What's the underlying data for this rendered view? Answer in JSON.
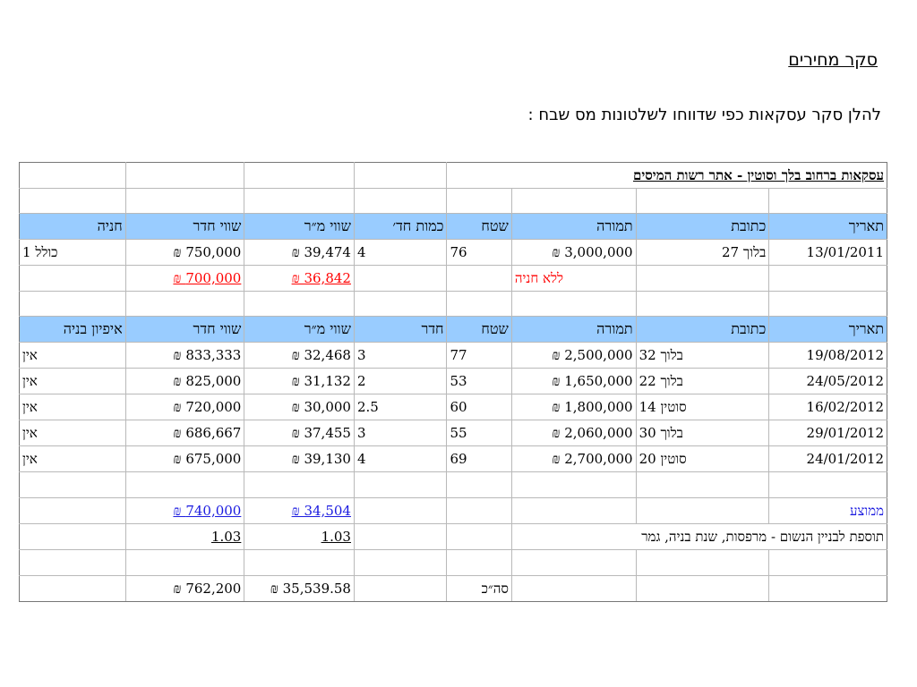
{
  "page": {
    "title": "סקר מחירים",
    "intro": "להלן סקר עסקאות כפי שדווחו לשלטונות מס שבח :"
  },
  "table": {
    "title": "עסקאות ברחוב בלך וסוטין - אתר רשות המיסים",
    "header1": [
      "תאריך",
      "כתובת",
      "תמורה",
      "שטח",
      "כמות חד׳",
      "שווי מ״ר",
      "שווי חדר",
      "חניה"
    ],
    "row1": [
      "13/01/2011",
      "בלוך 27",
      "3,000,000 ₪",
      "76",
      "4",
      "39,474 ₪",
      "750,000 ₪",
      "כולל 1"
    ],
    "row1_note": {
      "label": "ללא חניה",
      "sqm": "36,842 ₪",
      "room": "700,000 ₪"
    },
    "header2": [
      "תאריך",
      "כתובת",
      "תמורה",
      "שטח",
      "חדר",
      "שווי מ״ר",
      "שווי חדר",
      "איפיון בניה"
    ],
    "rows": [
      [
        "19/08/2012",
        "בלוך 32",
        "2,500,000 ₪",
        "77",
        "3",
        "32,468 ₪",
        "833,333 ₪",
        "אין"
      ],
      [
        "24/05/2012",
        "בלוך 22",
        "1,650,000 ₪",
        "53",
        "2",
        "31,132 ₪",
        "825,000 ₪",
        "אין"
      ],
      [
        "16/02/2012",
        "סוטין 14",
        "1,800,000 ₪",
        "60",
        "2.5",
        "30,000 ₪",
        "720,000 ₪",
        "אין"
      ],
      [
        "29/01/2012",
        "בלוך 30",
        "2,060,000 ₪",
        "55",
        "3",
        "37,455 ₪",
        "686,667 ₪",
        "אין"
      ],
      [
        "24/01/2012",
        "סוטין 20",
        "2,700,000 ₪",
        "69",
        "4",
        "39,130 ₪",
        "675,000 ₪",
        "אין"
      ]
    ],
    "average": {
      "label": "ממוצע",
      "sqm": "34,504 ₪",
      "room": "740,000 ₪"
    },
    "premium": {
      "label": "תוספת לבניין הנשום - מרפסות, שנת בניה, גמר",
      "sqm": "1.03",
      "room": "1.03"
    },
    "total": {
      "label": "סה״כ",
      "sqm": "35,539.58 ₪",
      "room": "762,200 ₪"
    }
  }
}
